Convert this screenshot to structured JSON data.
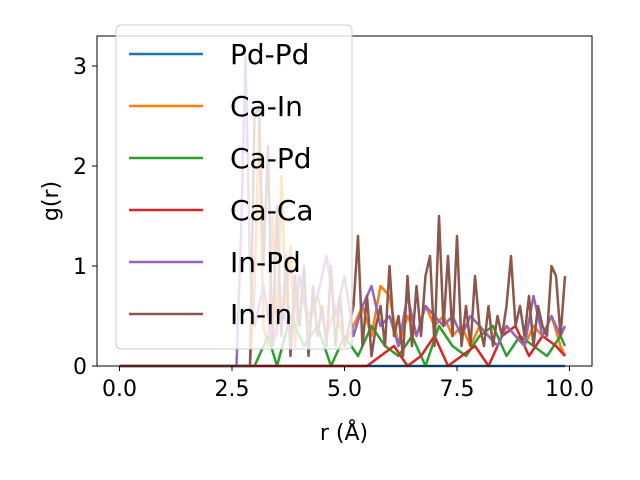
{
  "chart_data": {
    "type": "line",
    "title": "",
    "xlabel": "r (Å)",
    "ylabel": "g(r)",
    "xlim": [
      -0.5,
      10.5
    ],
    "ylim": [
      0,
      3.3
    ],
    "xticks": [
      0.0,
      2.5,
      5.0,
      7.5,
      10.0
    ],
    "xtick_labels": [
      "0.0",
      "2.5",
      "5.0",
      "7.5",
      "10.0"
    ],
    "yticks": [
      0,
      1,
      2,
      3
    ],
    "ytick_labels": [
      "0",
      "1",
      "2",
      "3"
    ],
    "grid": false,
    "legend_position": "top-left",
    "series": [
      {
        "name": "Pd-Pd",
        "color": "#1f77b4",
        "x": [
          0,
          2.6,
          2.8,
          3.0,
          3.2,
          9.9
        ],
        "y": [
          0,
          0,
          0,
          0,
          0,
          0
        ]
      },
      {
        "name": "Ca-In",
        "color": "#ff7f0e",
        "x": [
          0,
          2.9,
          3.0,
          3.1,
          3.2,
          3.3,
          3.4,
          3.5,
          3.6,
          3.7,
          3.8,
          3.9,
          4.0,
          4.2,
          4.4,
          4.6,
          4.8,
          5.0,
          5.2,
          5.4,
          5.6,
          5.8,
          6.0,
          6.2,
          6.4,
          6.6,
          6.8,
          7.0,
          7.2,
          7.4,
          7.6,
          7.8,
          8.0,
          8.2,
          8.4,
          8.6,
          8.8,
          9.0,
          9.2,
          9.4,
          9.6,
          9.8,
          9.9
        ],
        "y": [
          0,
          0,
          0.8,
          2.4,
          0.4,
          0.2,
          1.5,
          0.3,
          1.9,
          0.6,
          1.2,
          0.2,
          0.9,
          0.5,
          0.7,
          0.3,
          0.6,
          0.2,
          0.4,
          0.6,
          0.3,
          0.8,
          0.7,
          0.2,
          0.5,
          0.3,
          0.6,
          0.4,
          0.5,
          0.3,
          0.4,
          0.2,
          0.4,
          0.3,
          0.2,
          0.4,
          0.3,
          0.2,
          0.4,
          0.3,
          0.5,
          0.2,
          0.1
        ]
      },
      {
        "name": "Ca-Pd",
        "color": "#2ca02c",
        "x": [
          0,
          3.0,
          3.3,
          3.5,
          3.8,
          4.1,
          4.4,
          4.7,
          5.0,
          5.3,
          5.6,
          5.9,
          6.2,
          6.5,
          6.8,
          7.1,
          7.4,
          7.7,
          8.0,
          8.3,
          8.6,
          8.9,
          9.2,
          9.5,
          9.8,
          9.9
        ],
        "y": [
          0,
          0,
          0.3,
          0,
          0.5,
          0.2,
          0.4,
          0,
          0.3,
          0.1,
          0.4,
          0.2,
          0.1,
          0.3,
          0,
          0.4,
          0.2,
          0.1,
          0.3,
          0.4,
          0.1,
          0.3,
          0.2,
          0.1,
          0.3,
          0.2
        ]
      },
      {
        "name": "Ca-Ca",
        "color": "#d62728",
        "x": [
          0,
          5.5,
          5.8,
          6.1,
          6.4,
          6.7,
          7.0,
          7.3,
          7.6,
          7.9,
          8.2,
          8.5,
          8.8,
          9.1,
          9.4,
          9.7,
          9.9
        ],
        "y": [
          0,
          0,
          0.1,
          0.2,
          0,
          0.1,
          0.3,
          0,
          0.1,
          0.2,
          0,
          0.3,
          0.4,
          0.1,
          0.3,
          0.2,
          0.1
        ]
      },
      {
        "name": "In-Pd",
        "color": "#9467bd",
        "x": [
          0,
          2.6,
          2.7,
          2.8,
          2.9,
          3.0,
          3.2,
          3.4,
          3.6,
          3.8,
          4.0,
          4.2,
          4.4,
          4.6,
          4.8,
          5.0,
          5.2,
          5.4,
          5.6,
          5.8,
          6.0,
          6.2,
          6.4,
          6.6,
          6.8,
          7.0,
          7.2,
          7.4,
          7.6,
          7.8,
          8.0,
          8.2,
          8.4,
          8.6,
          8.8,
          9.0,
          9.2,
          9.4,
          9.6,
          9.8,
          9.9
        ],
        "y": [
          0,
          0,
          1.3,
          3.1,
          1.0,
          0.4,
          0.8,
          0.2,
          0.6,
          0.3,
          0.9,
          0.4,
          0.7,
          1.1,
          0.5,
          0.9,
          0.3,
          0.6,
          0.8,
          0.4,
          0.5,
          0.2,
          0.7,
          0.3,
          0.6,
          0.5,
          0.4,
          0.5,
          0.3,
          0.5,
          0.4,
          0.3,
          0.2,
          0.4,
          0.3,
          0.2,
          0.7,
          0.3,
          0.5,
          0.3,
          0.4
        ]
      },
      {
        "name": "In-In",
        "color": "#8c564b",
        "x": [
          0,
          2.9,
          3.0,
          3.1,
          3.2,
          3.3,
          3.4,
          3.5,
          3.6,
          3.7,
          3.8,
          3.9,
          4.0,
          4.1,
          4.2,
          4.3,
          4.4,
          4.5,
          4.6,
          4.7,
          4.8,
          4.9,
          5.0,
          5.1,
          5.2,
          5.3,
          5.4,
          5.5,
          5.6,
          5.7,
          5.8,
          5.9,
          6.0,
          6.1,
          6.2,
          6.3,
          6.4,
          6.5,
          6.6,
          6.7,
          6.8,
          6.9,
          7.0,
          7.1,
          7.2,
          7.3,
          7.4,
          7.5,
          7.6,
          7.7,
          7.8,
          7.9,
          8.0,
          8.1,
          8.2,
          8.3,
          8.4,
          8.5,
          8.6,
          8.7,
          8.8,
          8.9,
          9.0,
          9.1,
          9.2,
          9.3,
          9.4,
          9.5,
          9.6,
          9.7,
          9.8,
          9.9
        ],
        "y": [
          0,
          0,
          2.5,
          2.6,
          1.0,
          2.2,
          0.2,
          1.6,
          0.3,
          1.1,
          0.1,
          0.9,
          0.4,
          1.0,
          0.1,
          0.8,
          0.3,
          0.6,
          0.2,
          1.0,
          0.2,
          0.7,
          0.2,
          0.4,
          0.6,
          1.3,
          0.2,
          0.7,
          0.1,
          0.4,
          0.6,
          0.2,
          1.0,
          0.3,
          0.5,
          0.1,
          0.9,
          0.2,
          0.8,
          0.3,
          0.9,
          1.1,
          0.2,
          1.5,
          0.4,
          1.1,
          0.3,
          1.3,
          0.2,
          0.6,
          0.2,
          0.9,
          0.4,
          0.2,
          0.6,
          0.2,
          0.5,
          0.3,
          0.6,
          1.1,
          0.4,
          0.6,
          0.3,
          0.7,
          0.2,
          0.6,
          0.4,
          0.3,
          1.0,
          0.9,
          0.3,
          0.9
        ]
      }
    ]
  }
}
